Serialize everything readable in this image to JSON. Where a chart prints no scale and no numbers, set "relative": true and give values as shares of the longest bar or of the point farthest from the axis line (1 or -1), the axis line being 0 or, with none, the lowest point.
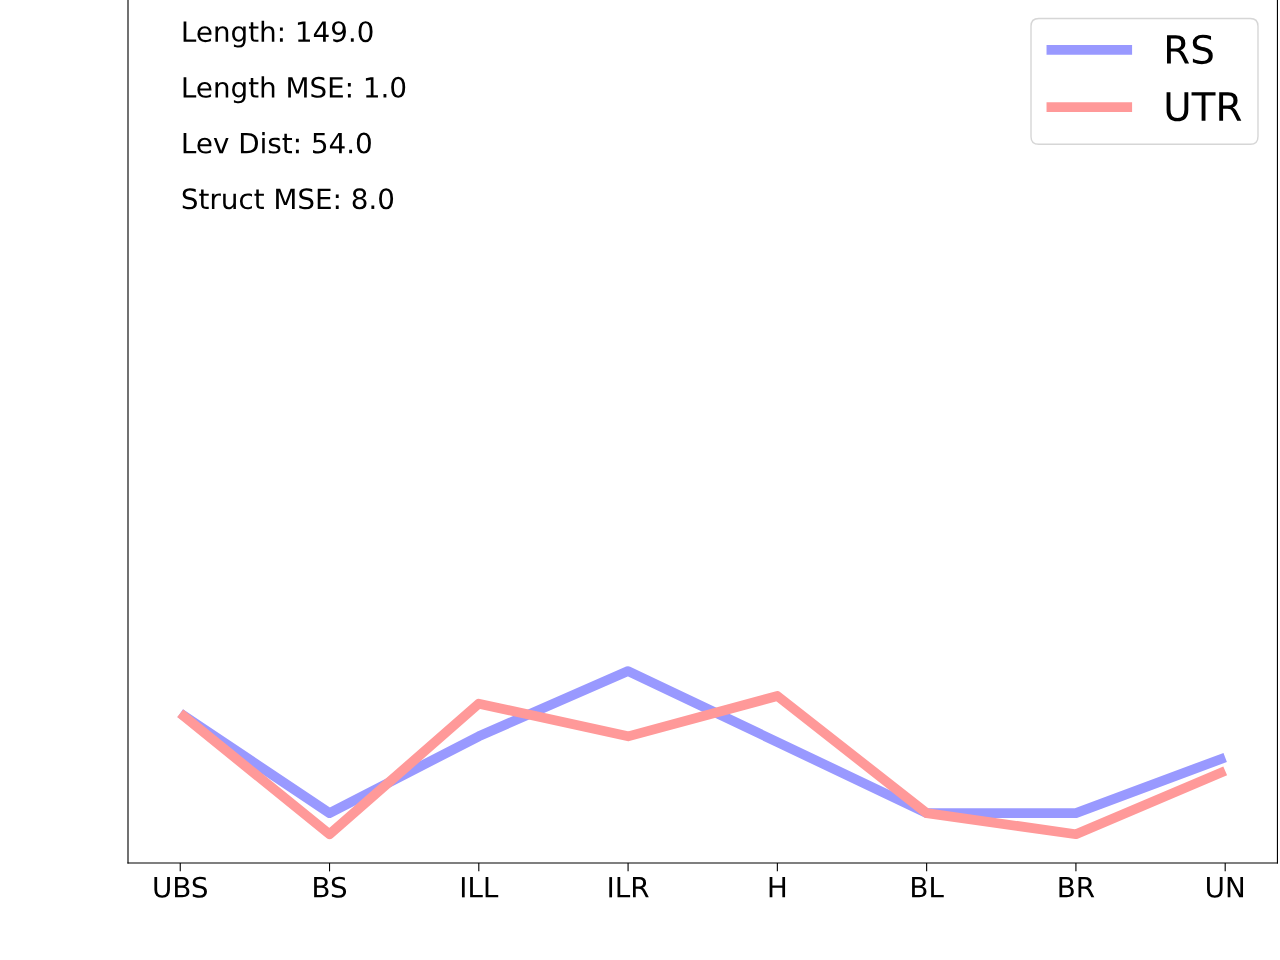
{
  "chart_data": {
    "type": "line",
    "relative": true,
    "categories": [
      "UBS",
      "BS",
      "ILL",
      "ILR",
      "H",
      "BL",
      "BR",
      "UN"
    ],
    "series": [
      {
        "name": "RS",
        "color": "#9999ff",
        "values": [
          0.78,
          0.26,
          0.66,
          1.0,
          0.63,
          0.26,
          0.26,
          0.55
        ]
      },
      {
        "name": "UTR",
        "color": "#ff9999",
        "values": [
          0.78,
          0.15,
          0.83,
          0.66,
          0.87,
          0.26,
          0.15,
          0.48
        ]
      }
    ],
    "annotations": [
      "Length: 149.0",
      "Length MSE: 1.0",
      "Lev Dist: 54.0",
      "Struct MSE: 8.0"
    ],
    "legend": "top right",
    "grid": false,
    "marker": "none",
    "line_style": "solid",
    "tick_labels": "x"
  }
}
